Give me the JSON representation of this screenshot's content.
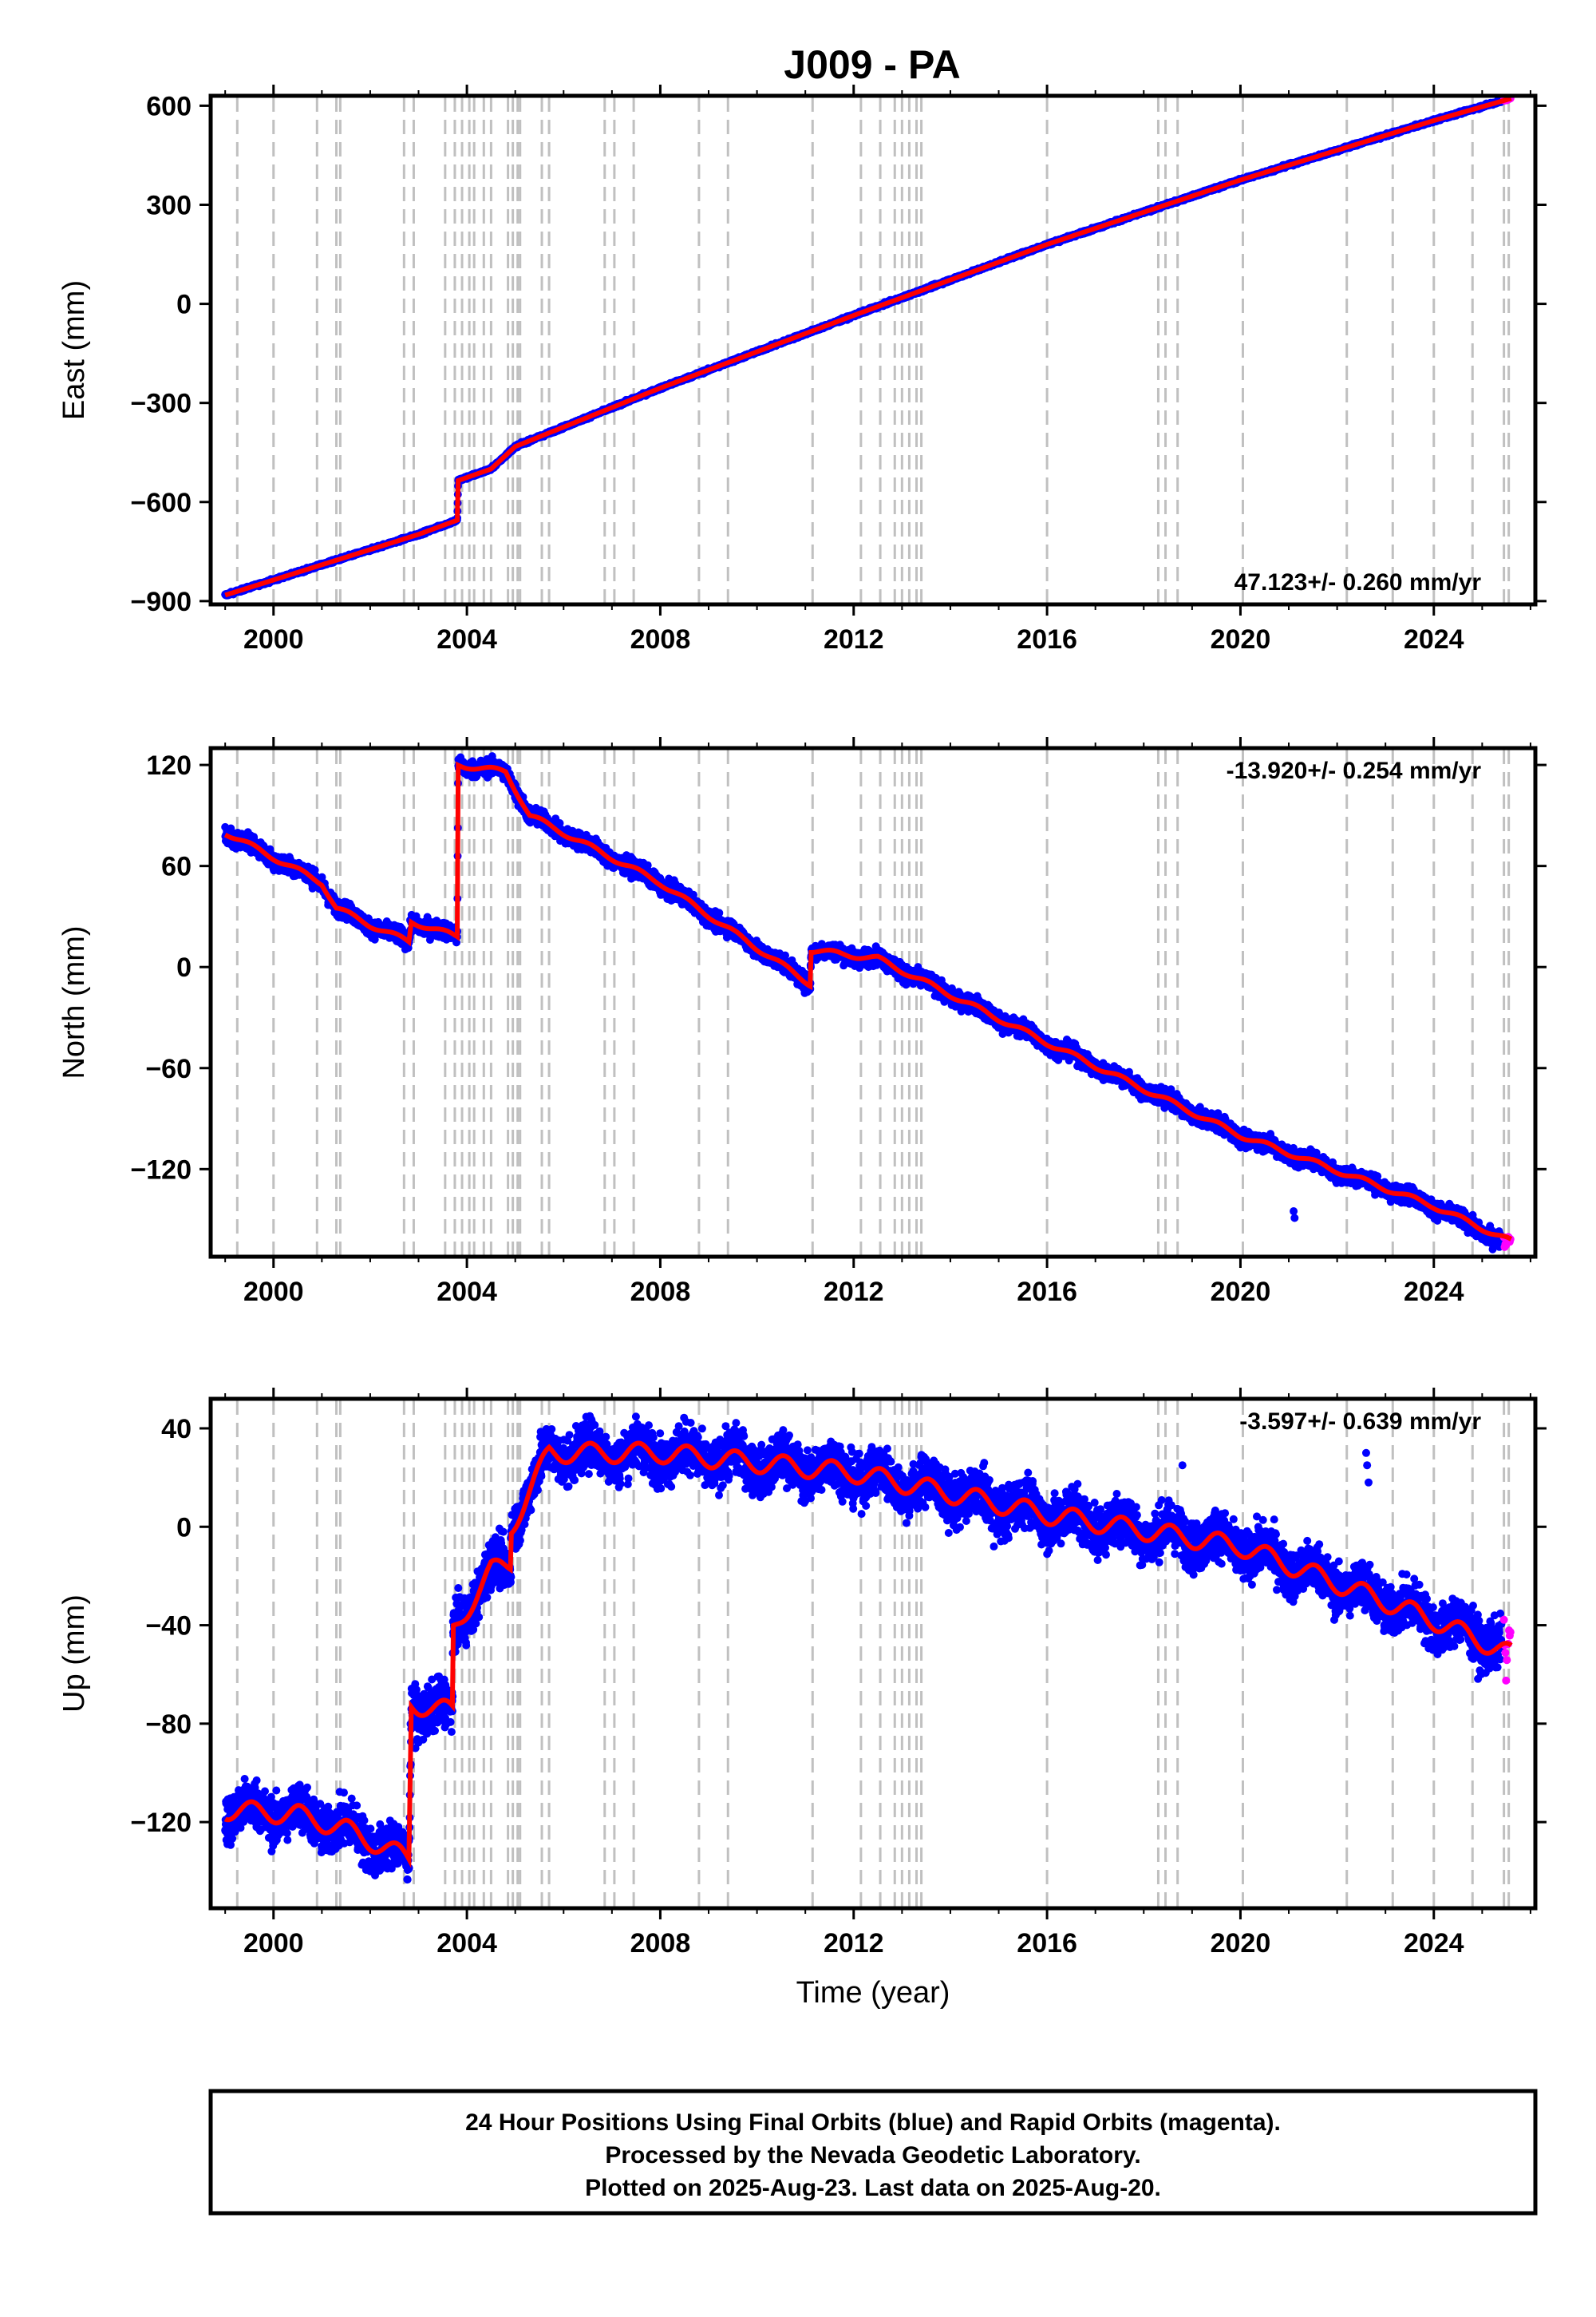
{
  "title": "J009 - PA",
  "footer": {
    "line1": "24 Hour Positions Using Final Orbits (blue) and Rapid Orbits (magenta).",
    "line2": "Processed by the Nevada Geodetic Laboratory.",
    "line3": "Plotted on 2025-Aug-23. Last data on 2025-Aug-20."
  },
  "colors": {
    "final_orbits": "#0000ff",
    "rapid_orbits": "#ff00ff",
    "model": "#ff0000",
    "events": "#c0c0c0"
  },
  "chart_data": [
    {
      "type": "scatter",
      "xlabel": "",
      "ylabel": "East (mm)",
      "xlim": [
        1998.7,
        2026.1
      ],
      "ylim": [
        -910,
        630
      ],
      "x_ticks": [
        2000,
        2004,
        2008,
        2012,
        2016,
        2020,
        2024
      ],
      "x_tick_labels": [
        "2000",
        "2004",
        "2008",
        "2012",
        "2016",
        "2020",
        "2024"
      ],
      "y_ticks": [
        -900,
        -600,
        -300,
        0,
        300,
        600
      ],
      "y_tick_labels": [
        "−900",
        "−600",
        "−300",
        "0",
        "300",
        "600"
      ],
      "rate_label": "47.123+/- 0.260 mm/yr",
      "rate_position": "bottom-right",
      "series": [
        {
          "name": "Final Orbits",
          "color": "#0000ff",
          "x": [
            1999.0,
            2001.0,
            2003.0,
            2003.8,
            2003.82,
            2004.5,
            2005.0,
            2008.0,
            2012.0,
            2016.0,
            2020.0,
            2024.0,
            2025.4
          ],
          "y": [
            -882,
            -790,
            -698,
            -655,
            -535,
            -500,
            -432,
            -255,
            -35,
            180,
            375,
            555,
            615
          ],
          "noise": 3
        },
        {
          "name": "Rapid Orbits",
          "color": "#ff00ff",
          "x": [
            2025.45,
            2025.5,
            2025.55,
            2025.6
          ],
          "y": [
            616,
            618,
            620,
            622
          ],
          "noise": 2
        }
      ],
      "model": {
        "x": [
          1999.0,
          2001.0,
          2003.0,
          2003.8,
          2003.82,
          2004.5,
          2005.0,
          2008.0,
          2012.0,
          2016.0,
          2020.0,
          2024.0,
          2025.6
        ],
        "y": [
          -882,
          -790,
          -698,
          -655,
          -535,
          -500,
          -432,
          -255,
          -35,
          180,
          375,
          555,
          622
        ],
        "seasonal_amplitude": 0
      }
    },
    {
      "type": "scatter",
      "xlabel": "",
      "ylabel": "North (mm)",
      "xlim": [
        1998.7,
        2026.1
      ],
      "ylim": [
        -172,
        130
      ],
      "x_ticks": [
        2000,
        2004,
        2008,
        2012,
        2016,
        2020,
        2024
      ],
      "x_tick_labels": [
        "2000",
        "2004",
        "2008",
        "2012",
        "2016",
        "2020",
        "2024"
      ],
      "y_ticks": [
        -120,
        -60,
        0,
        60,
        120
      ],
      "y_tick_labels": [
        "−120",
        "−60",
        "0",
        "60",
        "120"
      ],
      "rate_label": "-13.920+/- 0.254 mm/yr",
      "rate_position": "top-right",
      "series": [
        {
          "name": "Final Orbits",
          "color": "#0000ff",
          "x": [
            1999.0,
            2000.0,
            2001.0,
            2001.3,
            2002.0,
            2002.8,
            2002.85,
            2003.8,
            2003.82,
            2004.8,
            2005.3,
            2008.0,
            2011.1,
            2011.12,
            2012.5,
            2016.0,
            2020.0,
            2024.0,
            2025.4
          ],
          "y": [
            80,
            65,
            50,
            35,
            25,
            15,
            27,
            18,
            120,
            116,
            90,
            50,
            -10,
            10,
            5,
            -45,
            -100,
            -142,
            -163
          ],
          "noise": 3.5,
          "outliers": [
            [
              2021.1,
              -145
            ],
            [
              2021.12,
              -149
            ]
          ]
        },
        {
          "name": "Rapid Orbits",
          "color": "#ff00ff",
          "x": [
            2025.45,
            2025.5,
            2025.55,
            2025.6
          ],
          "y": [
            -162,
            -167,
            -160,
            -165
          ],
          "noise": 3
        }
      ],
      "model": {
        "x": [
          1999.0,
          2000.0,
          2001.0,
          2001.3,
          2002.0,
          2002.8,
          2002.85,
          2003.8,
          2003.82,
          2004.8,
          2005.3,
          2008.0,
          2011.1,
          2011.12,
          2012.5,
          2016.0,
          2020.0,
          2024.0,
          2025.6
        ],
        "y": [
          80,
          65,
          50,
          35,
          25,
          15,
          27,
          18,
          120,
          116,
          90,
          50,
          -10,
          10,
          5,
          -45,
          -100,
          -142,
          -163
        ],
        "seasonal_amplitude": 1.5
      }
    },
    {
      "type": "scatter",
      "xlabel": "Time (year)",
      "ylabel": "Up (mm)",
      "xlim": [
        1998.7,
        2026.1
      ],
      "ylim": [
        -155,
        52
      ],
      "x_ticks": [
        2000,
        2004,
        2008,
        2012,
        2016,
        2020,
        2024
      ],
      "x_tick_labels": [
        "2000",
        "2004",
        "2008",
        "2012",
        "2016",
        "2020",
        "2024"
      ],
      "y_ticks": [
        -120,
        -80,
        -40,
        0,
        40
      ],
      "y_tick_labels": [
        "−120",
        "−80",
        "−40",
        "0",
        "40"
      ],
      "rate_label": "-3.597+/- 0.639 mm/yr",
      "rate_position": "top-right",
      "series": [
        {
          "name": "Final Orbits",
          "color": "#0000ff",
          "x": [
            1999.0,
            2000.5,
            2001.5,
            2002.8,
            2002.85,
            2003.7,
            2003.72,
            2004.5,
            2004.9,
            2004.92,
            2005.7,
            2008.0,
            2012.0,
            2016.0,
            2020.0,
            2024.0,
            2025.4
          ],
          "y": [
            -115,
            -117,
            -123,
            -135,
            -72,
            -75,
            -42,
            -18,
            -15,
            0,
            30,
            30,
            22,
            5,
            -8,
            -38,
            -48
          ],
          "noise": 7,
          "outliers": [
            [
              2022.6,
              30
            ],
            [
              2022.62,
              25
            ],
            [
              2022.65,
              18
            ],
            [
              2018.8,
              25
            ],
            [
              2014.9,
              -8
            ]
          ]
        },
        {
          "name": "Rapid Orbits",
          "color": "#ff00ff",
          "x": [
            2025.45,
            2025.5,
            2025.55,
            2025.6
          ],
          "y": [
            -50,
            -62,
            -45,
            -58
          ],
          "noise": 6
        }
      ],
      "model": {
        "x": [
          1999.0,
          2000.5,
          2001.5,
          2002.8,
          2002.85,
          2003.7,
          2003.72,
          2004.5,
          2004.9,
          2004.92,
          2005.7,
          2008.0,
          2012.0,
          2016.0,
          2020.0,
          2024.0,
          2025.6
        ],
        "y": [
          -115,
          -117,
          -123,
          -135,
          -72,
          -75,
          -42,
          -18,
          -15,
          0,
          30,
          30,
          22,
          5,
          -8,
          -38,
          -52
        ],
        "seasonal_amplitude": 4
      }
    }
  ],
  "event_lines": [
    1999.25,
    2000.0,
    2000.9,
    2001.3,
    2001.38,
    2002.7,
    2002.9,
    2003.55,
    2003.75,
    2003.9,
    2004.05,
    2004.15,
    2004.35,
    2004.5,
    2004.85,
    2004.95,
    2005.05,
    2005.1,
    2005.55,
    2005.7,
    2006.85,
    2007.05,
    2007.45,
    2008.8,
    2009.4,
    2011.15,
    2012.15,
    2012.55,
    2012.85,
    2013.0,
    2013.15,
    2013.3,
    2013.4,
    2016.0,
    2018.3,
    2018.45,
    2018.7,
    2020.05,
    2022.2,
    2023.15,
    2024.0,
    2024.8,
    2025.45,
    2025.55
  ]
}
